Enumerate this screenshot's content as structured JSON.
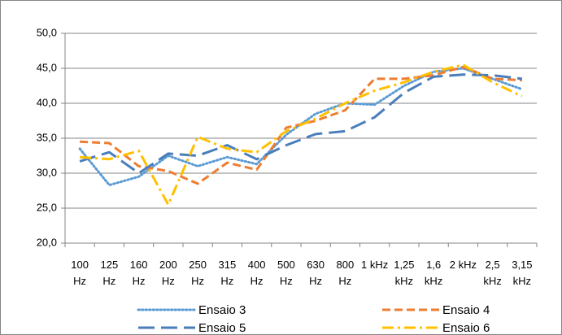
{
  "chart_data": {
    "type": "line",
    "categories": [
      "100 Hz",
      "125 Hz",
      "160 Hz",
      "200 Hz",
      "250 Hz",
      "315 Hz",
      "400 Hz",
      "500 Hz",
      "630 Hz",
      "800 Hz",
      "1 kHz",
      "1,25 kHz",
      "1,6 kHz",
      "2 kHz",
      "2,5 kHz",
      "3,15 kHz"
    ],
    "series": [
      {
        "name": "Ensaio 3",
        "color": "#5b9bd5",
        "line_style": "dot",
        "values": [
          33.5,
          28.3,
          29.5,
          32.5,
          31,
          32.3,
          31.3,
          35.5,
          38.5,
          40,
          39.8,
          42.5,
          44.5,
          45,
          43.5,
          42
        ]
      },
      {
        "name": "Ensaio 4",
        "color": "#ed7d31",
        "line_style": "dash",
        "values": [
          34.5,
          34.3,
          31,
          30.3,
          28.5,
          31.5,
          30.5,
          36.5,
          37.5,
          39,
          43.5,
          43.5,
          44,
          45.2,
          43.5,
          43.3
        ]
      },
      {
        "name": "Ensaio 5",
        "color": "#4a7ebb",
        "line_style": "longdash",
        "values": [
          31.7,
          33,
          30,
          32.8,
          32.5,
          34,
          32,
          34,
          35.6,
          36,
          38,
          41.5,
          43.8,
          44.1,
          44,
          43.5
        ]
      },
      {
        "name": "Ensaio 6",
        "color": "#ffc000",
        "line_style": "dashdot",
        "values": [
          32.3,
          32,
          33.2,
          25.5,
          35.2,
          33.5,
          33,
          36,
          37.8,
          40,
          41.8,
          43,
          44.5,
          45.5,
          43,
          41
        ]
      }
    ],
    "ylim": [
      20,
      50
    ],
    "yticks": [
      {
        "value": 20,
        "label": "20,0"
      },
      {
        "value": 25,
        "label": "25,0"
      },
      {
        "value": 30,
        "label": "30,0"
      },
      {
        "value": 35,
        "label": "35,0"
      },
      {
        "value": 40,
        "label": "40,0"
      },
      {
        "value": 45,
        "label": "45,0"
      },
      {
        "value": 50,
        "label": "50,0"
      }
    ],
    "grid": true,
    "legend": "bottom"
  }
}
